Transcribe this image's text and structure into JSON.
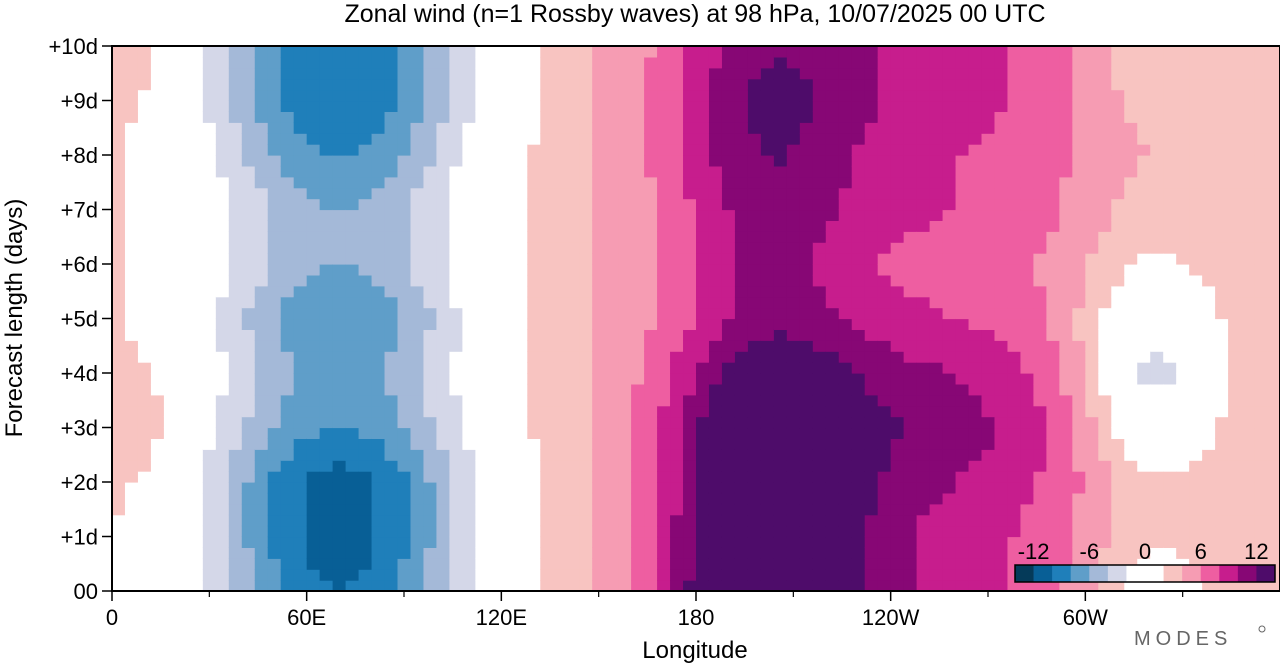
{
  "chart_data": {
    "type": "heatmap",
    "subtype": "filled-contour (Hovmoller diagram)",
    "title": "Zonal wind (n=1 Rossby waves) at 98 hPa,  10/07/2025  00 UTC",
    "xlabel": "Longitude",
    "ylabel": "Forecast length (days)",
    "x_ticks": [
      {
        "lon": 0,
        "label": "0"
      },
      {
        "lon": 60,
        "label": "60E"
      },
      {
        "lon": 120,
        "label": "120E"
      },
      {
        "lon": 180,
        "label": "180"
      },
      {
        "lon": 240,
        "label": "120W"
      },
      {
        "lon": 300,
        "label": "60W"
      }
    ],
    "x_minor_ticks": [
      30,
      90,
      150,
      210,
      270,
      330
    ],
    "xlim": [
      0,
      360
    ],
    "y_ticks": [
      {
        "day": 0,
        "label": "00"
      },
      {
        "day": 1,
        "label": "+1d"
      },
      {
        "day": 2,
        "label": "+2d"
      },
      {
        "day": 3,
        "label": "+3d"
      },
      {
        "day": 4,
        "label": "+4d"
      },
      {
        "day": 5,
        "label": "+5d"
      },
      {
        "day": 6,
        "label": "+6d"
      },
      {
        "day": 7,
        "label": "+7d"
      },
      {
        "day": 8,
        "label": "+8d"
      },
      {
        "day": 9,
        "label": "+9d"
      },
      {
        "day": 10,
        "label": "+10d"
      }
    ],
    "ylim": [
      0,
      10
    ],
    "colorbar": {
      "labels": [
        {
          "value": -12,
          "text": "-12"
        },
        {
          "value": -6,
          "text": "-6"
        },
        {
          "value": 0,
          "text": "0"
        },
        {
          "value": 6,
          "text": "6"
        },
        {
          "value": 12,
          "text": "12"
        }
      ],
      "colors": [
        "#053a59",
        "#085f96",
        "#1f7fba",
        "#5f9ec9",
        "#a4b9d8",
        "#d4d7e8",
        "#ffffff",
        "#ffffff",
        "#f8c4c1",
        "#f69cb3",
        "#ee5ea1",
        "#c71d8d",
        "#870775",
        "#4e0c6a"
      ],
      "placement": "bottom-right, inside plot"
    },
    "contour_levels": [
      -12,
      -10,
      -8,
      -6,
      -4,
      -2,
      0,
      2,
      4,
      6,
      8,
      10,
      12
    ],
    "grid": false,
    "components": {
      "lon_grid": [
        0,
        60,
        120,
        180,
        240,
        300,
        360
      ],
      "background": 4,
      "waves": [
        {
          "center_lon": 70,
          "halfwidth": 45,
          "amp_by_day": [
            -14,
            -15,
            -15,
            -12,
            -11,
            -12,
            -10,
            -10,
            -12,
            -14,
            -14
          ]
        },
        {
          "center_lon": 200,
          "halfwidth": 30,
          "amp_by_day": [
            12,
            11,
            10,
            9,
            7,
            5,
            5,
            5,
            6,
            6,
            5
          ]
        },
        {
          "center_lon": 250,
          "halfwidth": 60,
          "amp_by_day": [
            5,
            5,
            6,
            7,
            6,
            4,
            3,
            4,
            4,
            5,
            5
          ]
        },
        {
          "center_lon": 320,
          "halfwidth": 22,
          "amp_by_day": [
            -4,
            -3,
            -3,
            -6,
            -8,
            -6,
            -3,
            -2,
            -1,
            -2,
            -3
          ]
        },
        {
          "center_lon": 10,
          "halfwidth": 10,
          "amp_by_day": [
            -2,
            -2,
            0,
            1,
            0,
            -1,
            -1,
            -1,
            -1,
            0,
            1
          ]
        }
      ]
    }
  },
  "brand": "MODES"
}
